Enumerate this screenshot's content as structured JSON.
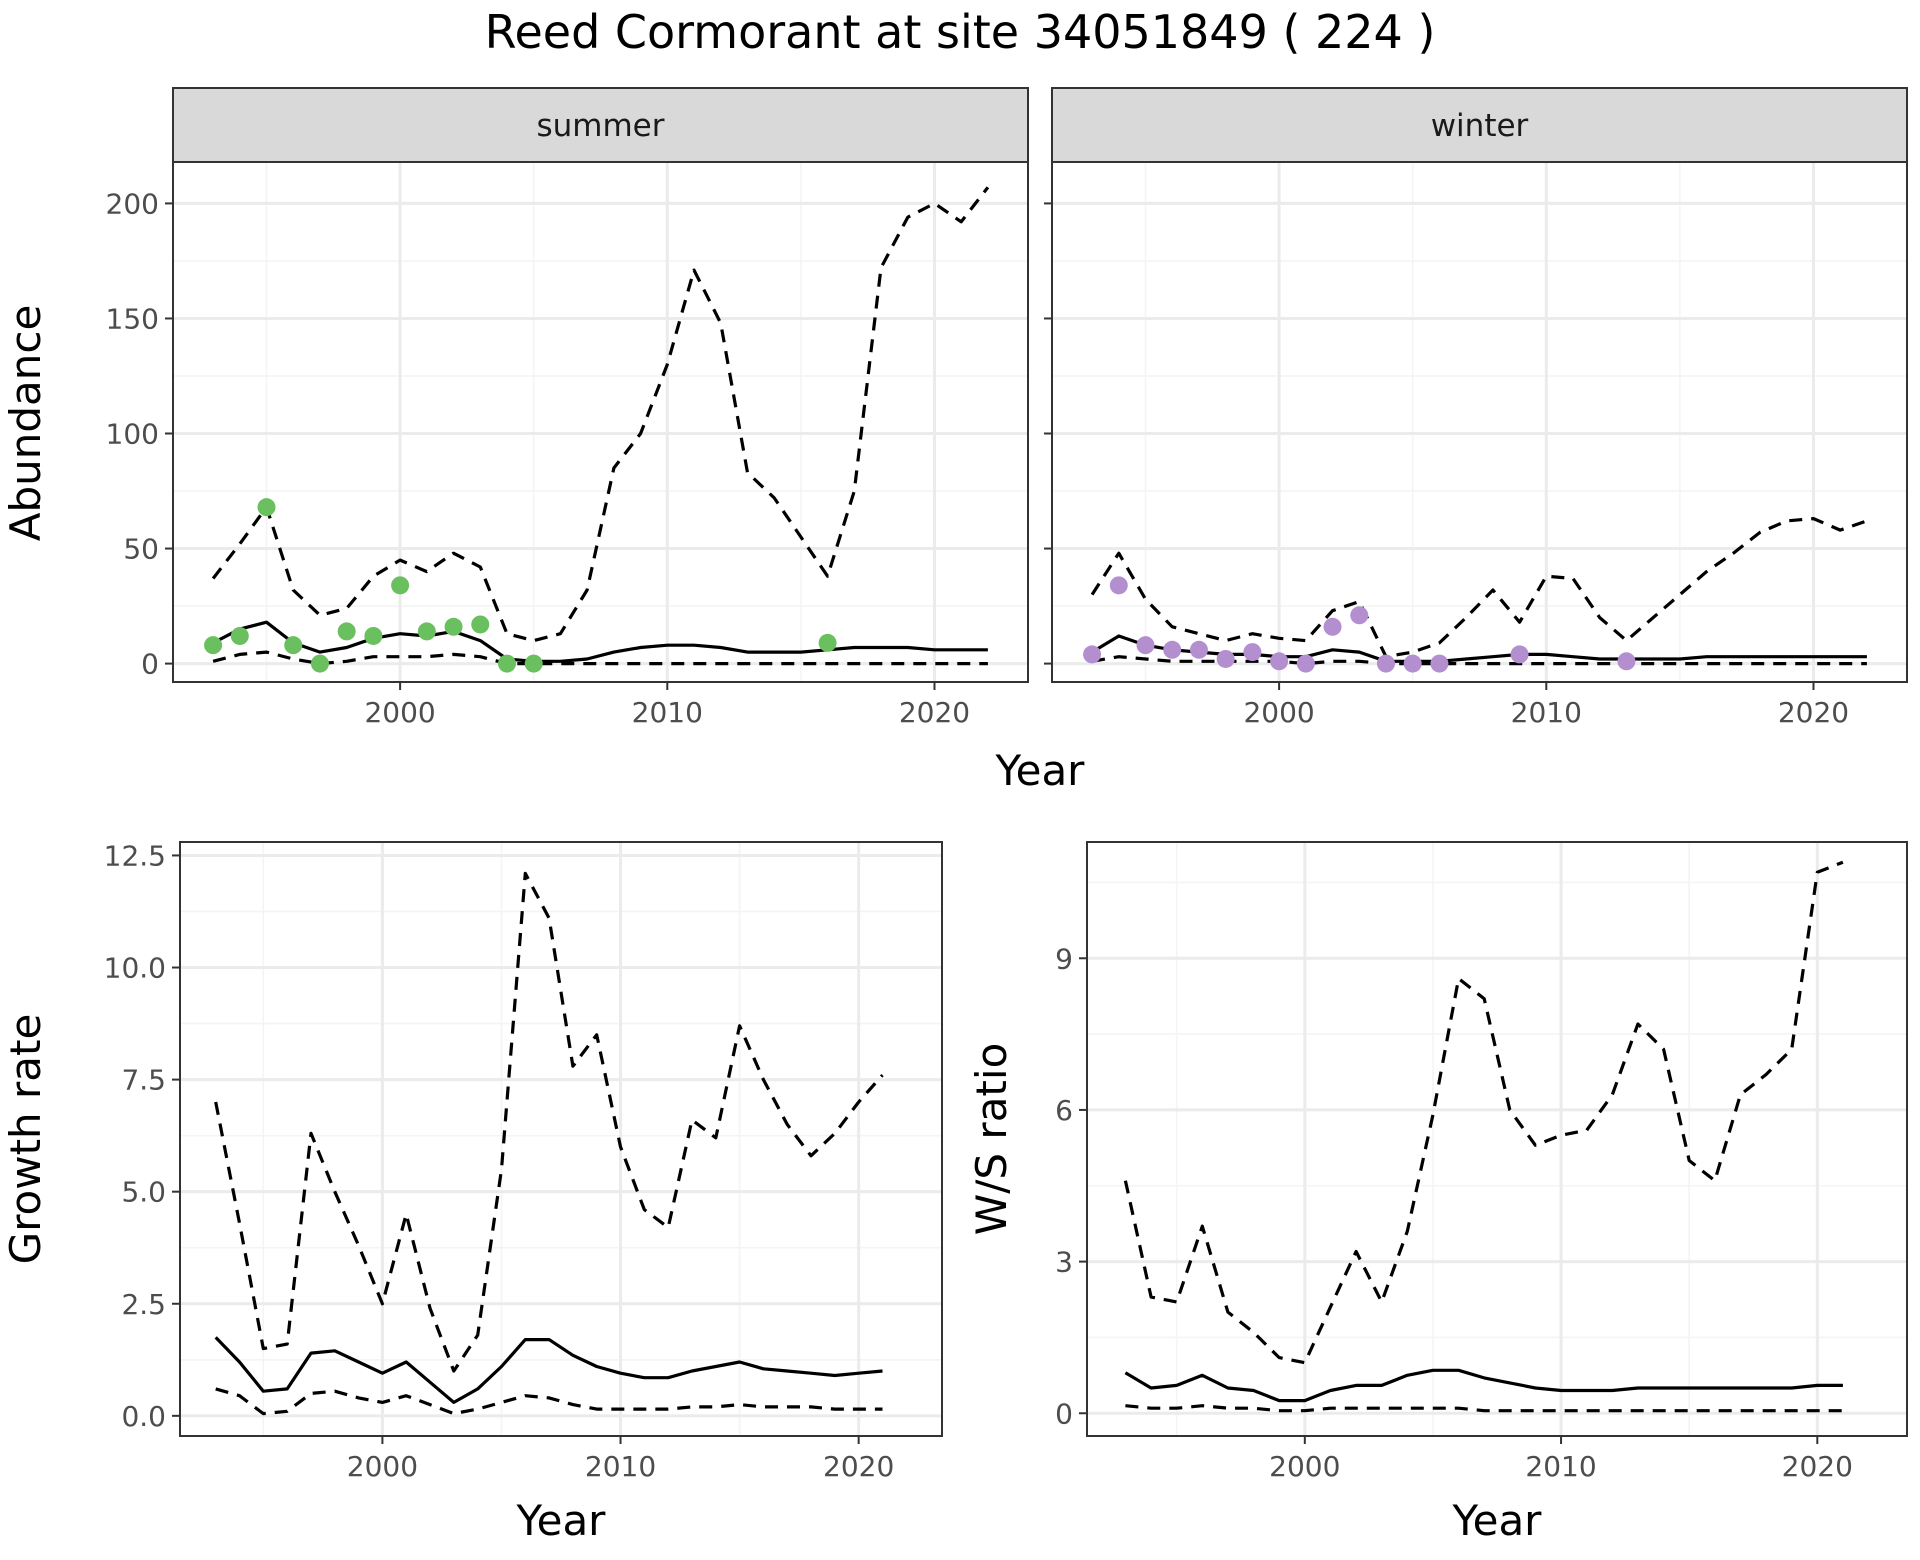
{
  "title": "Reed Cormorant at site 34051849 ( 224 )",
  "colors": {
    "summer_points": "#6abf5e",
    "winter_points": "#b48fd0",
    "lines": "#000000",
    "strip_fill": "#d9d9d9",
    "grid_major": "#ebebeb",
    "grid_minor": "#f4f4f4"
  },
  "chart_data": [
    {
      "type": "line",
      "panel": "summer",
      "strip_label": "summer",
      "xlabel": "Year",
      "ylabel": "Abundance",
      "xlim": [
        1991.5,
        2023.5
      ],
      "ylim": [
        -8,
        218
      ],
      "x_ticks": [
        2000,
        2010,
        2020
      ],
      "y_ticks": [
        0,
        50,
        100,
        150,
        200
      ],
      "grid": true,
      "observed_points": {
        "x": [
          1993,
          1994,
          1995,
          1996,
          1997,
          1998,
          1999,
          2000,
          2001,
          2002,
          2003,
          2004,
          2005,
          2016
        ],
        "y": [
          8,
          12,
          68,
          8,
          0,
          14,
          12,
          34,
          14,
          16,
          17,
          0,
          0,
          9
        ]
      },
      "series": [
        {
          "style": "solid",
          "x": [
            1993,
            1994,
            1995,
            1996,
            1997,
            1998,
            1999,
            2000,
            2001,
            2002,
            2003,
            2004,
            2005,
            2006,
            2007,
            2008,
            2009,
            2010,
            2011,
            2012,
            2013,
            2014,
            2015,
            2016,
            2017,
            2018,
            2019,
            2020,
            2021,
            2022
          ],
          "y": [
            9,
            15,
            18,
            9,
            5,
            7,
            11,
            13,
            12,
            14,
            10,
            2,
            1,
            1,
            2,
            5,
            7,
            8,
            8,
            7,
            5,
            5,
            5,
            6,
            7,
            7,
            7,
            6,
            6,
            6
          ]
        },
        {
          "style": "dashed",
          "x": [
            1993,
            1994,
            1995,
            1996,
            1997,
            1998,
            1999,
            2000,
            2001,
            2002,
            2003,
            2004,
            2005,
            2006,
            2007,
            2008,
            2009,
            2010,
            2011,
            2012,
            2013,
            2014,
            2015,
            2016,
            2017,
            2018,
            2019,
            2020,
            2021,
            2022
          ],
          "y": [
            37,
            52,
            68,
            32,
            21,
            24,
            38,
            45,
            40,
            48,
            42,
            13,
            10,
            13,
            32,
            85,
            100,
            130,
            171,
            148,
            83,
            72,
            55,
            38,
            75,
            172,
            194,
            200,
            192,
            207
          ]
        },
        {
          "style": "dashed",
          "x": [
            1993,
            1994,
            1995,
            1996,
            1997,
            1998,
            1999,
            2000,
            2001,
            2002,
            2003,
            2004,
            2005,
            2006,
            2007,
            2008,
            2009,
            2010,
            2011,
            2012,
            2013,
            2014,
            2015,
            2016,
            2017,
            2018,
            2019,
            2020,
            2021,
            2022
          ],
          "y": [
            1,
            4,
            5,
            2,
            0,
            1,
            3,
            3,
            3,
            4,
            3,
            0,
            0,
            0,
            0,
            0,
            0,
            0,
            0,
            0,
            0,
            0,
            0,
            0,
            0,
            0,
            0,
            0,
            0,
            0
          ]
        }
      ]
    },
    {
      "type": "line",
      "panel": "winter",
      "strip_label": "winter",
      "xlabel": "Year",
      "ylabel": "Abundance",
      "xlim": [
        1991.5,
        2023.5
      ],
      "ylim": [
        -8,
        218
      ],
      "x_ticks": [
        2000,
        2010,
        2020
      ],
      "y_ticks": [
        0,
        50,
        100,
        150,
        200
      ],
      "grid": true,
      "observed_points": {
        "x": [
          1993,
          1994,
          1995,
          1996,
          1997,
          1998,
          1999,
          2000,
          2001,
          2002,
          2003,
          2004,
          2005,
          2006,
          2009,
          2013
        ],
        "y": [
          4,
          34,
          8,
          6,
          6,
          2,
          5,
          1,
          0,
          16,
          21,
          0,
          0,
          0,
          4,
          1
        ]
      },
      "series": [
        {
          "style": "solid",
          "x": [
            1993,
            1994,
            1995,
            1996,
            1997,
            1998,
            1999,
            2000,
            2001,
            2002,
            2003,
            2004,
            2005,
            2006,
            2007,
            2008,
            2009,
            2010,
            2011,
            2012,
            2013,
            2014,
            2015,
            2016,
            2017,
            2018,
            2019,
            2020,
            2021,
            2022
          ],
          "y": [
            5,
            12,
            8,
            6,
            5,
            4,
            4,
            3,
            3,
            6,
            5,
            1,
            1,
            1,
            2,
            3,
            4,
            4,
            3,
            2,
            2,
            2,
            2,
            3,
            3,
            3,
            3,
            3,
            3,
            3
          ]
        },
        {
          "style": "dashed",
          "x": [
            1993,
            1994,
            1995,
            1996,
            1997,
            1998,
            1999,
            2000,
            2001,
            2002,
            2003,
            2004,
            2005,
            2006,
            2007,
            2008,
            2009,
            2010,
            2011,
            2012,
            2013,
            2014,
            2015,
            2016,
            2017,
            2018,
            2019,
            2020,
            2021,
            2022
          ],
          "y": [
            30,
            48,
            28,
            16,
            13,
            10,
            13,
            11,
            10,
            23,
            27,
            3,
            5,
            9,
            20,
            32,
            18,
            38,
            37,
            20,
            10,
            20,
            30,
            40,
            48,
            57,
            62,
            63,
            58,
            62
          ]
        },
        {
          "style": "dashed",
          "x": [
            1993,
            1994,
            1995,
            1996,
            1997,
            1998,
            1999,
            2000,
            2001,
            2002,
            2003,
            2004,
            2005,
            2006,
            2007,
            2008,
            2009,
            2010,
            2011,
            2012,
            2013,
            2014,
            2015,
            2016,
            2017,
            2018,
            2019,
            2020,
            2021,
            2022
          ],
          "y": [
            1,
            3,
            2,
            1,
            1,
            1,
            1,
            1,
            0,
            1,
            1,
            0,
            0,
            0,
            0,
            0,
            0,
            0,
            0,
            0,
            0,
            0,
            0,
            0,
            0,
            0,
            0,
            0,
            0,
            0
          ]
        }
      ]
    },
    {
      "type": "line",
      "panel": "growth",
      "xlabel": "Year",
      "ylabel": "Growth rate",
      "xlim": [
        1991.5,
        2023.5
      ],
      "ylim": [
        -0.45,
        12.8
      ],
      "x_ticks": [
        2000,
        2010,
        2020
      ],
      "y_ticks": [
        0.0,
        2.5,
        5.0,
        7.5,
        10.0,
        12.5
      ],
      "y_tick_labels": [
        "0.0",
        "2.5",
        "5.0",
        "7.5",
        "10.0",
        "12.5"
      ],
      "grid": true,
      "series": [
        {
          "style": "solid",
          "x": [
            1993,
            1994,
            1995,
            1996,
            1997,
            1998,
            1999,
            2000,
            2001,
            2002,
            2003,
            2004,
            2005,
            2006,
            2007,
            2008,
            2009,
            2010,
            2011,
            2012,
            2013,
            2014,
            2015,
            2016,
            2017,
            2018,
            2019,
            2020,
            2021
          ],
          "y": [
            1.75,
            1.2,
            0.55,
            0.6,
            1.4,
            1.45,
            1.2,
            0.95,
            1.2,
            0.75,
            0.3,
            0.6,
            1.1,
            1.7,
            1.7,
            1.35,
            1.1,
            0.95,
            0.85,
            0.85,
            1.0,
            1.1,
            1.2,
            1.05,
            1.0,
            0.95,
            0.9,
            0.95,
            1.0
          ]
        },
        {
          "style": "dashed",
          "x": [
            1993,
            1994,
            1995,
            1996,
            1997,
            1998,
            1999,
            2000,
            2001,
            2002,
            2003,
            2004,
            2005,
            2006,
            2007,
            2008,
            2009,
            2010,
            2011,
            2012,
            2013,
            2014,
            2015,
            2016,
            2017,
            2018,
            2019,
            2020,
            2021
          ],
          "y": [
            7.0,
            4.3,
            1.5,
            1.6,
            6.3,
            5.0,
            3.8,
            2.5,
            4.5,
            2.4,
            1.0,
            1.8,
            5.5,
            12.1,
            11.1,
            7.8,
            8.5,
            6.0,
            4.6,
            4.2,
            6.6,
            6.2,
            8.7,
            7.5,
            6.5,
            5.8,
            6.3,
            7.0,
            7.6
          ]
        },
        {
          "style": "dashed",
          "x": [
            1993,
            1994,
            1995,
            1996,
            1997,
            1998,
            1999,
            2000,
            2001,
            2002,
            2003,
            2004,
            2005,
            2006,
            2007,
            2008,
            2009,
            2010,
            2011,
            2012,
            2013,
            2014,
            2015,
            2016,
            2017,
            2018,
            2019,
            2020,
            2021
          ],
          "y": [
            0.6,
            0.45,
            0.05,
            0.1,
            0.5,
            0.55,
            0.4,
            0.3,
            0.45,
            0.25,
            0.05,
            0.15,
            0.3,
            0.45,
            0.4,
            0.25,
            0.15,
            0.15,
            0.15,
            0.15,
            0.2,
            0.2,
            0.25,
            0.2,
            0.2,
            0.2,
            0.15,
            0.15,
            0.15
          ]
        }
      ]
    },
    {
      "type": "line",
      "panel": "ratio",
      "xlabel": "Year",
      "ylabel": "W/S ratio",
      "xlim": [
        1991.5,
        2023.5
      ],
      "ylim": [
        -0.45,
        11.3
      ],
      "x_ticks": [
        2000,
        2010,
        2020
      ],
      "y_ticks": [
        0,
        3,
        6,
        9
      ],
      "grid": true,
      "series": [
        {
          "style": "solid",
          "x": [
            1993,
            1994,
            1995,
            1996,
            1997,
            1998,
            1999,
            2000,
            2001,
            2002,
            2003,
            2004,
            2005,
            2006,
            2007,
            2008,
            2009,
            2010,
            2011,
            2012,
            2013,
            2014,
            2015,
            2016,
            2017,
            2018,
            2019,
            2020,
            2021
          ],
          "y": [
            0.8,
            0.5,
            0.55,
            0.75,
            0.5,
            0.45,
            0.25,
            0.25,
            0.45,
            0.55,
            0.55,
            0.75,
            0.85,
            0.85,
            0.7,
            0.6,
            0.5,
            0.45,
            0.45,
            0.45,
            0.5,
            0.5,
            0.5,
            0.5,
            0.5,
            0.5,
            0.5,
            0.55,
            0.55
          ]
        },
        {
          "style": "dashed",
          "x": [
            1993,
            1994,
            1995,
            1996,
            1997,
            1998,
            1999,
            2000,
            2001,
            2002,
            2003,
            2004,
            2005,
            2006,
            2007,
            2008,
            2009,
            2010,
            2011,
            2012,
            2013,
            2014,
            2015,
            2016,
            2017,
            2018,
            2019,
            2020,
            2021
          ],
          "y": [
            4.6,
            2.3,
            2.2,
            3.7,
            2.0,
            1.6,
            1.1,
            1.0,
            2.1,
            3.2,
            2.2,
            3.6,
            5.9,
            8.6,
            8.2,
            6.0,
            5.3,
            5.5,
            5.6,
            6.3,
            7.7,
            7.2,
            5.0,
            4.6,
            6.3,
            6.7,
            7.2,
            10.7,
            10.9
          ]
        },
        {
          "style": "dashed",
          "x": [
            1993,
            1994,
            1995,
            1996,
            1997,
            1998,
            1999,
            2000,
            2001,
            2002,
            2003,
            2004,
            2005,
            2006,
            2007,
            2008,
            2009,
            2010,
            2011,
            2012,
            2013,
            2014,
            2015,
            2016,
            2017,
            2018,
            2019,
            2020,
            2021
          ],
          "y": [
            0.15,
            0.1,
            0.1,
            0.15,
            0.1,
            0.1,
            0.05,
            0.05,
            0.1,
            0.1,
            0.1,
            0.1,
            0.1,
            0.1,
            0.05,
            0.05,
            0.05,
            0.05,
            0.05,
            0.05,
            0.05,
            0.05,
            0.05,
            0.05,
            0.05,
            0.05,
            0.05,
            0.05,
            0.05
          ]
        }
      ]
    }
  ]
}
